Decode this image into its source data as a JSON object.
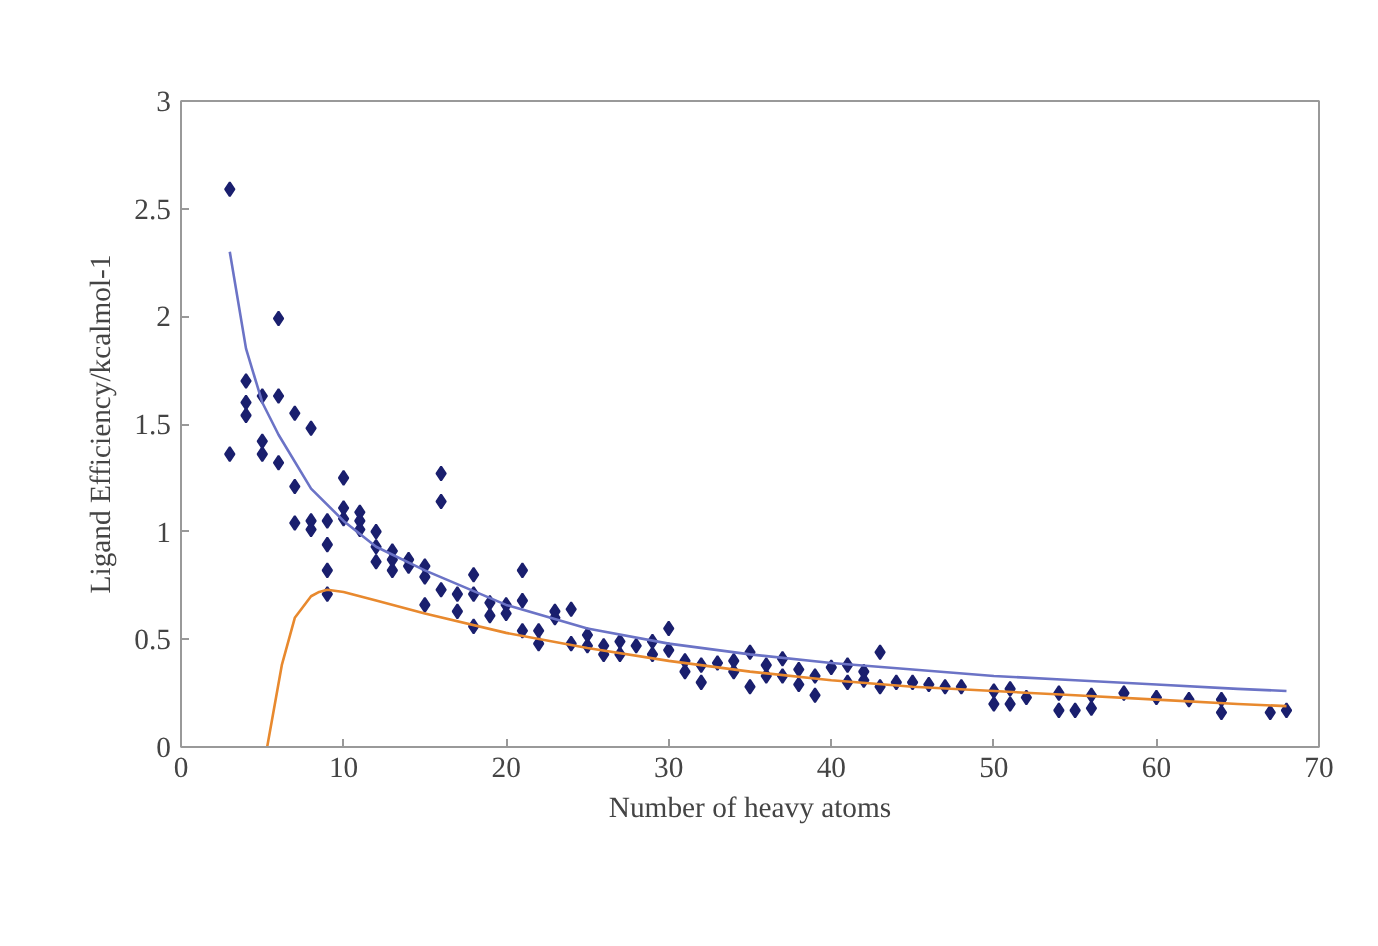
{
  "chart_data": {
    "type": "scatter",
    "xlabel": "Number of heavy atoms",
    "ylabel": "Ligand Efficiency/kcalmol-1",
    "xlim": [
      0,
      70
    ],
    "ylim": [
      0,
      3
    ],
    "xticks": [
      0,
      10,
      20,
      30,
      40,
      50,
      60,
      70
    ],
    "yticks": [
      0,
      0.5,
      1,
      1.5,
      2,
      2.5,
      3
    ],
    "grid": false,
    "marker": "diamond",
    "series": [
      {
        "color": "#1a1f6e",
        "x": [
          3,
          3,
          4,
          4,
          4,
          5,
          5,
          5,
          6,
          6,
          6,
          7,
          7,
          7,
          8,
          8,
          8,
          9,
          9,
          9,
          9,
          10,
          10,
          10,
          11,
          11,
          11,
          12,
          12,
          12,
          13,
          13,
          13,
          14,
          14,
          15,
          15,
          15,
          16,
          16,
          16,
          17,
          17,
          18,
          18,
          18,
          19,
          19,
          20,
          20,
          21,
          21,
          21,
          22,
          22,
          23,
          23,
          24,
          24,
          25,
          25,
          26,
          26,
          27,
          27,
          28,
          29,
          29,
          30,
          30,
          31,
          31,
          32,
          32,
          33,
          34,
          34,
          35,
          35,
          36,
          36,
          37,
          37,
          38,
          38,
          39,
          39,
          40,
          41,
          41,
          42,
          42,
          43,
          43,
          44,
          45,
          46,
          47,
          48,
          50,
          50,
          51,
          51,
          52,
          54,
          54,
          55,
          56,
          56,
          58,
          60,
          62,
          64,
          64,
          67,
          68
        ],
        "values": [
          2.59,
          1.36,
          1.7,
          1.6,
          1.54,
          1.63,
          1.42,
          1.36,
          1.99,
          1.63,
          1.32,
          1.55,
          1.21,
          1.04,
          1.48,
          1.05,
          1.01,
          1.05,
          0.94,
          0.82,
          0.71,
          1.25,
          1.11,
          1.06,
          1.09,
          1.05,
          1.01,
          1.0,
          0.93,
          0.86,
          0.91,
          0.87,
          0.82,
          0.87,
          0.84,
          0.84,
          0.79,
          0.66,
          1.27,
          1.14,
          0.73,
          0.71,
          0.63,
          0.8,
          0.71,
          0.56,
          0.67,
          0.61,
          0.66,
          0.62,
          0.82,
          0.68,
          0.54,
          0.54,
          0.48,
          0.63,
          0.6,
          0.64,
          0.48,
          0.52,
          0.47,
          0.47,
          0.43,
          0.49,
          0.43,
          0.47,
          0.49,
          0.43,
          0.55,
          0.45,
          0.4,
          0.35,
          0.38,
          0.3,
          0.39,
          0.4,
          0.35,
          0.44,
          0.28,
          0.38,
          0.33,
          0.41,
          0.33,
          0.36,
          0.29,
          0.33,
          0.24,
          0.37,
          0.38,
          0.3,
          0.35,
          0.31,
          0.44,
          0.28,
          0.3,
          0.3,
          0.29,
          0.28,
          0.28,
          0.26,
          0.2,
          0.27,
          0.2,
          0.23,
          0.25,
          0.17,
          0.17,
          0.24,
          0.18,
          0.25,
          0.23,
          0.22,
          0.22,
          0.16,
          0.16,
          0.17
        ]
      },
      {
        "type": "line",
        "color": "#6b73c6",
        "marker": "none",
        "x": [
          3,
          4,
          5,
          6,
          8,
          10,
          12,
          15,
          20,
          25,
          30,
          35,
          40,
          45,
          50,
          55,
          60,
          65,
          68
        ],
        "values": [
          2.3,
          1.85,
          1.6,
          1.45,
          1.2,
          1.05,
          0.93,
          0.82,
          0.66,
          0.55,
          0.48,
          0.43,
          0.39,
          0.36,
          0.33,
          0.31,
          0.29,
          0.27,
          0.26
        ]
      },
      {
        "type": "line",
        "color": "#e8892e",
        "marker": "none",
        "x": [
          5.3,
          6.2,
          7,
          8,
          8.5,
          9,
          10,
          12,
          15,
          20,
          25,
          30,
          35,
          40,
          45,
          50,
          55,
          60,
          65,
          68
        ],
        "values": [
          0,
          0.38,
          0.6,
          0.7,
          0.72,
          0.73,
          0.72,
          0.68,
          0.62,
          0.53,
          0.46,
          0.4,
          0.35,
          0.31,
          0.28,
          0.26,
          0.24,
          0.22,
          0.2,
          0.19
        ]
      }
    ]
  }
}
